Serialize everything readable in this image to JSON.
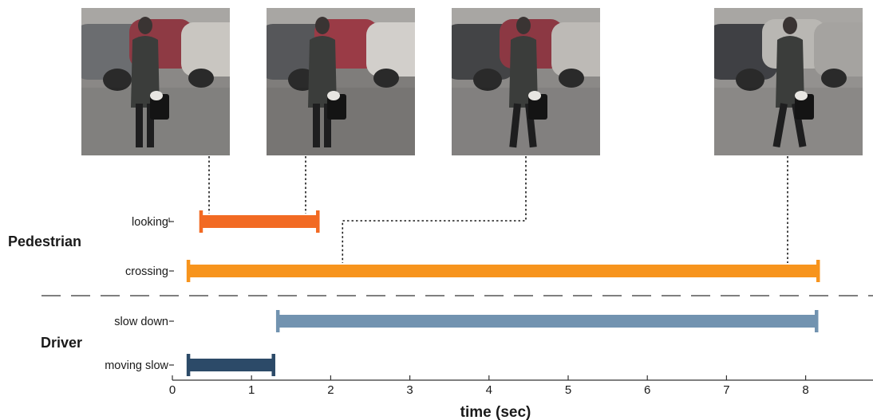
{
  "chart_data": {
    "type": "timeline",
    "xlabel": "time (sec)",
    "xlim": [
      0,
      8.9
    ],
    "x_ticks": [
      0,
      1,
      2,
      3,
      4,
      5,
      6,
      7,
      8
    ],
    "grid": false,
    "groups": [
      {
        "name": "Pedestrian",
        "rows": [
          "looking",
          "crossing"
        ]
      },
      {
        "name": "Driver",
        "rows": [
          "slow down",
          "moving slow"
        ]
      }
    ],
    "series": [
      {
        "name": "looking",
        "start": 0.36,
        "end": 1.84,
        "color": "#f26a23"
      },
      {
        "name": "crossing",
        "start": 0.2,
        "end": 8.16,
        "color": "#f7941d"
      },
      {
        "name": "slow down",
        "start": 1.33,
        "end": 8.14,
        "color": "#7293b0"
      },
      {
        "name": "moving slow",
        "start": 0.2,
        "end": 1.28,
        "color": "#2c4a68"
      }
    ],
    "frames": [
      {
        "time": 0.48,
        "row": "looking",
        "scene": "standing-left"
      },
      {
        "time": 1.7,
        "row": "looking",
        "scene": "standing"
      },
      {
        "time": 2.15,
        "row": "crossing",
        "scene": "walking"
      },
      {
        "time": 7.8,
        "row": "crossing",
        "scene": "walking-right"
      }
    ]
  }
}
